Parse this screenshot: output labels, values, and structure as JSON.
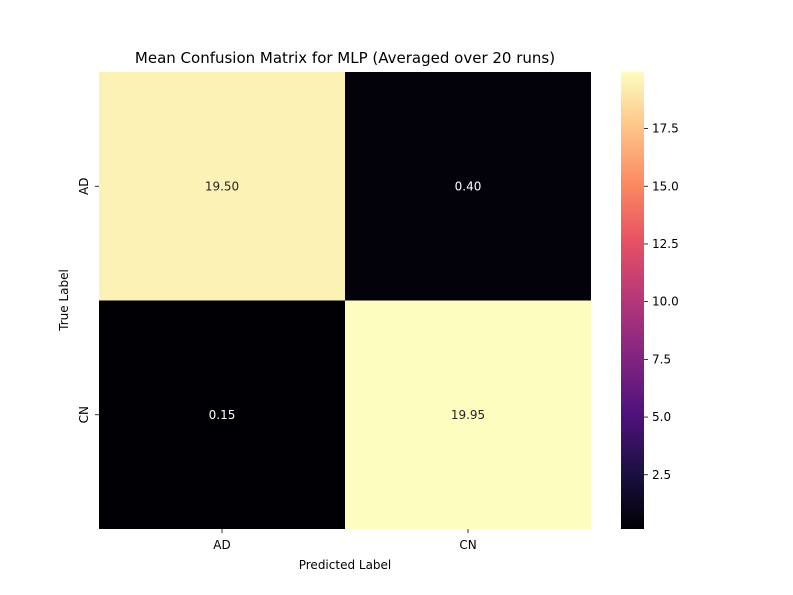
{
  "chart_data": {
    "type": "heatmap",
    "title": "Mean Confusion Matrix for MLP (Averaged over 20 runs)",
    "xlabel": "Predicted Label",
    "ylabel": "True Label",
    "x_categories": [
      "AD",
      "CN"
    ],
    "y_categories": [
      "AD",
      "CN"
    ],
    "values": [
      [
        19.5,
        0.4
      ],
      [
        0.15,
        19.95
      ]
    ],
    "value_labels": [
      [
        "19.50",
        "0.40"
      ],
      [
        "0.15",
        "19.95"
      ]
    ],
    "colormap": "magma",
    "colorbar": {
      "range": [
        0.15,
        19.95
      ],
      "ticks": [
        2.5,
        5.0,
        7.5,
        10.0,
        12.5,
        15.0,
        17.5
      ],
      "tick_labels": [
        "2.5",
        "5.0",
        "7.5",
        "10.0",
        "12.5",
        "15.0",
        "17.5"
      ]
    },
    "grid": false,
    "legend": "colorbar-right"
  }
}
